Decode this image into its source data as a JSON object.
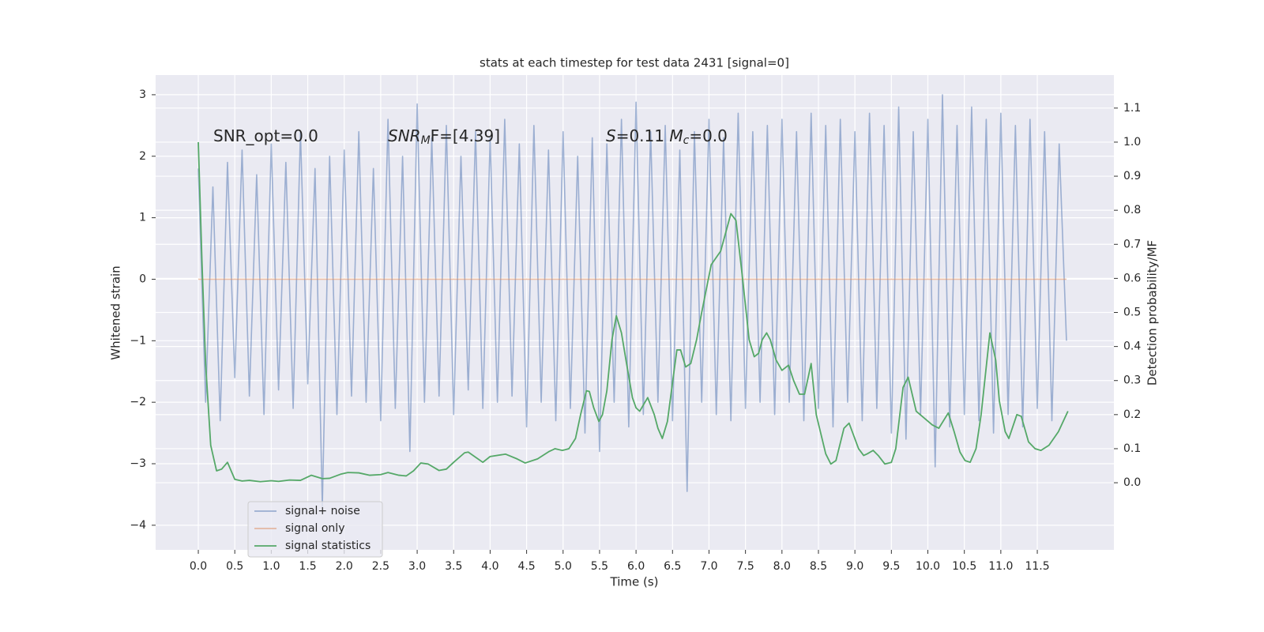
{
  "chart_data": {
    "type": "line",
    "title": "stats at each timestep for test data 2431 [signal=0]",
    "xlabel": "Time (s)",
    "ylabel": "Whitened strain",
    "y2label": "Detection probability/MF",
    "annotations": [
      [
        {
          "text": "SNR_opt=0.0"
        }
      ],
      [
        {
          "text": "SNR",
          "style": "italic"
        },
        {
          "text": "M",
          "style": "italic-sub"
        },
        {
          "text": "F=[4.39]"
        }
      ],
      [
        {
          "text": "S",
          "style": "italic"
        },
        {
          "text": "=0.11   "
        },
        {
          "text": "M",
          "style": "italic"
        },
        {
          "text": "c",
          "style": "italic-sub"
        },
        {
          "text": "=0.0"
        }
      ]
    ],
    "grid": true,
    "legend": "lower left",
    "xlim": [
      -0.585,
      12.55
    ],
    "ylim": [
      -4.4,
      3.32
    ],
    "y2lim": [
      -0.197,
      1.197
    ],
    "xticks": [
      {
        "value": 0,
        "label": "0.0"
      },
      0.5,
      {
        "value": 1,
        "label": "1.0"
      },
      1.5,
      {
        "value": 2,
        "label": "2.0"
      },
      2.5,
      {
        "value": 3,
        "label": "3.0"
      },
      3.5,
      {
        "value": 4,
        "label": "4.0"
      },
      4.5,
      {
        "value": 5,
        "label": "5.0"
      },
      5.5,
      {
        "value": 6,
        "label": "6.0"
      },
      6.5,
      {
        "value": 7,
        "label": "7.0"
      },
      7.5,
      {
        "value": 8,
        "label": "8.0"
      },
      8.5,
      {
        "value": 9,
        "label": "9.0"
      },
      9.5,
      {
        "value": 10,
        "label": "10.0"
      },
      10.5,
      {
        "value": 11,
        "label": "11.0"
      },
      11.5
    ],
    "yticks": [
      {
        "value": -4,
        "label": "−4"
      },
      {
        "value": -3,
        "label": "−3"
      },
      {
        "value": -2,
        "label": "−2"
      },
      {
        "value": -1,
        "label": "−1"
      },
      0,
      1,
      2,
      3
    ],
    "y2ticks": [
      {
        "value": 0,
        "label": "0.0"
      },
      0.1,
      0.2,
      0.3,
      0.4,
      0.5,
      0.6,
      0.7,
      0.8,
      0.9,
      {
        "value": 1,
        "label": "1.0"
      },
      1.1
    ],
    "series": [
      {
        "name": "signal+ noise",
        "color": "#4c72b0",
        "opacity": 0.5,
        "x": [
          0,
          0.1,
          0.2,
          0.3,
          0.4,
          0.5,
          0.6,
          0.7,
          0.8,
          0.9,
          1,
          1.1,
          1.2,
          1.3,
          1.4,
          1.5,
          1.6,
          1.7,
          1.8,
          1.9,
          2,
          2.1,
          2.2,
          2.3,
          2.4,
          2.5,
          2.6,
          2.7,
          2.8,
          2.9,
          3,
          3.1,
          3.2,
          3.3,
          3.4,
          3.5,
          3.6,
          3.7,
          3.8,
          3.9,
          4,
          4.1,
          4.2,
          4.3,
          4.4,
          4.5,
          4.6,
          4.7,
          4.8,
          4.9,
          5,
          5.1,
          5.2,
          5.3,
          5.4,
          5.5,
          5.6,
          5.7,
          5.8,
          5.9,
          6,
          6.1,
          6.2,
          6.3,
          6.4,
          6.5,
          6.6,
          6.7,
          6.8,
          6.9,
          7,
          7.1,
          7.2,
          7.3,
          7.4,
          7.5,
          7.6,
          7.7,
          7.8,
          7.9,
          8,
          8.1,
          8.2,
          8.3,
          8.4,
          8.5,
          8.6,
          8.7,
          8.8,
          8.9,
          9,
          9.1,
          9.2,
          9.3,
          9.4,
          9.5,
          9.6,
          9.7,
          9.8,
          9.9,
          10,
          10.1,
          10.2,
          10.3,
          10.4,
          10.5,
          10.6,
          10.7,
          10.8,
          10.9,
          11,
          11.1,
          11.2,
          11.3,
          11.4,
          11.5,
          11.6,
          11.7,
          11.8,
          11.9
        ],
        "values": [
          1.8,
          -2.0,
          1.5,
          -2.3,
          1.9,
          -1.6,
          2.1,
          -1.9,
          1.7,
          -2.2,
          2.2,
          -1.8,
          1.9,
          -2.1,
          2.4,
          -1.7,
          1.8,
          -3.7,
          2.0,
          -2.2,
          2.1,
          -1.9,
          2.4,
          -2.0,
          1.8,
          -2.3,
          2.6,
          -2.1,
          2.0,
          -2.8,
          2.85,
          -2.0,
          2.3,
          -1.9,
          2.5,
          -2.2,
          2.0,
          -1.8,
          2.4,
          -2.1,
          2.3,
          -2.0,
          2.6,
          -1.9,
          2.2,
          -2.4,
          2.5,
          -2.0,
          2.1,
          -2.3,
          2.4,
          -2.1,
          2.0,
          -2.5,
          2.3,
          -2.8,
          2.2,
          -2.0,
          2.6,
          -2.4,
          2.88,
          -2.2,
          2.4,
          -2.0,
          2.5,
          -2.3,
          2.1,
          -3.45,
          2.4,
          -2.0,
          2.6,
          -2.2,
          2.3,
          -2.3,
          2.7,
          -2.1,
          2.4,
          -2.0,
          2.5,
          -2.2,
          2.6,
          -2.0,
          2.4,
          -2.3,
          2.7,
          -2.1,
          2.5,
          -2.4,
          2.6,
          -2.0,
          2.4,
          -2.3,
          2.7,
          -2.1,
          2.5,
          -2.5,
          2.8,
          -2.6,
          2.4,
          -2.2,
          2.6,
          -3.05,
          3.0,
          -2.4,
          2.5,
          -2.2,
          2.8,
          -2.3,
          2.6,
          -2.5,
          2.7,
          -2.2,
          2.5,
          -2.4,
          2.6,
          -2.1,
          2.4,
          -2.3,
          2.2,
          -1.0
        ]
      },
      {
        "name": "signal only",
        "color": "#dd8452",
        "opacity": 0.5,
        "x": [
          0,
          11.9
        ],
        "values": [
          0,
          0
        ]
      },
      {
        "name": "signal statistics",
        "color": "#55a868",
        "opacity": 1,
        "axis": "y2",
        "x": [
          0,
          0.05,
          0.1,
          0.17,
          0.25,
          0.32,
          0.4,
          0.45,
          0.5,
          0.6,
          0.7,
          0.85,
          1,
          1.1,
          1.25,
          1.4,
          1.55,
          1.7,
          1.8,
          1.95,
          2.05,
          2.2,
          2.35,
          2.5,
          2.6,
          2.75,
          2.85,
          2.95,
          3.05,
          3.15,
          3.3,
          3.4,
          3.5,
          3.65,
          3.7,
          3.8,
          3.9,
          4,
          4.21,
          4.37,
          4.48,
          4.65,
          4.81,
          4.89,
          4.99,
          5.08,
          5.17,
          5.24,
          5.32,
          5.36,
          5.42,
          5.49,
          5.54,
          5.6,
          5.67,
          5.73,
          5.8,
          5.87,
          5.95,
          6,
          6.05,
          6.16,
          6.25,
          6.3,
          6.36,
          6.43,
          6.51,
          6.56,
          6.61,
          6.68,
          6.75,
          6.83,
          6.9,
          7.03,
          7.16,
          7.3,
          7.37,
          7.46,
          7.55,
          7.62,
          7.68,
          7.73,
          7.79,
          7.84,
          7.92,
          8,
          8.09,
          8.16,
          8.24,
          8.31,
          8.4,
          8.47,
          8.6,
          8.67,
          8.74,
          8.85,
          8.92,
          9.05,
          9.12,
          9.17,
          9.25,
          9.32,
          9.41,
          9.5,
          9.56,
          9.66,
          9.73,
          9.84,
          9.95,
          10.06,
          10.15,
          10.28,
          10.36,
          10.44,
          10.51,
          10.58,
          10.66,
          10.73,
          10.85,
          10.93,
          10.98,
          11.06,
          11.11,
          11.22,
          11.28,
          11.38,
          11.47,
          11.55,
          11.66,
          11.79,
          11.92
        ],
        "values": [
          1.0,
          0.65,
          0.35,
          0.11,
          0.035,
          0.04,
          0.06,
          0.035,
          0.01,
          0.005,
          0.007,
          0.003,
          0.006,
          0.004,
          0.008,
          0.007,
          0.022,
          0.012,
          0.013,
          0.025,
          0.03,
          0.029,
          0.022,
          0.024,
          0.03,
          0.022,
          0.02,
          0.035,
          0.058,
          0.055,
          0.036,
          0.04,
          0.06,
          0.088,
          0.09,
          0.075,
          0.06,
          0.077,
          0.084,
          0.07,
          0.058,
          0.07,
          0.092,
          0.1,
          0.095,
          0.1,
          0.13,
          0.2,
          0.27,
          0.268,
          0.22,
          0.18,
          0.2,
          0.27,
          0.42,
          0.49,
          0.44,
          0.35,
          0.25,
          0.22,
          0.21,
          0.25,
          0.2,
          0.16,
          0.13,
          0.18,
          0.31,
          0.39,
          0.39,
          0.34,
          0.35,
          0.42,
          0.5,
          0.64,
          0.68,
          0.79,
          0.77,
          0.6,
          0.42,
          0.37,
          0.38,
          0.42,
          0.44,
          0.42,
          0.36,
          0.33,
          0.345,
          0.3,
          0.26,
          0.26,
          0.35,
          0.2,
          0.085,
          0.055,
          0.065,
          0.16,
          0.175,
          0.1,
          0.08,
          0.085,
          0.095,
          0.08,
          0.055,
          0.06,
          0.1,
          0.28,
          0.31,
          0.21,
          0.19,
          0.17,
          0.16,
          0.205,
          0.15,
          0.09,
          0.065,
          0.06,
          0.1,
          0.2,
          0.44,
          0.36,
          0.24,
          0.15,
          0.13,
          0.2,
          0.195,
          0.12,
          0.1,
          0.095,
          0.11,
          0.15,
          0.21
        ]
      }
    ]
  }
}
